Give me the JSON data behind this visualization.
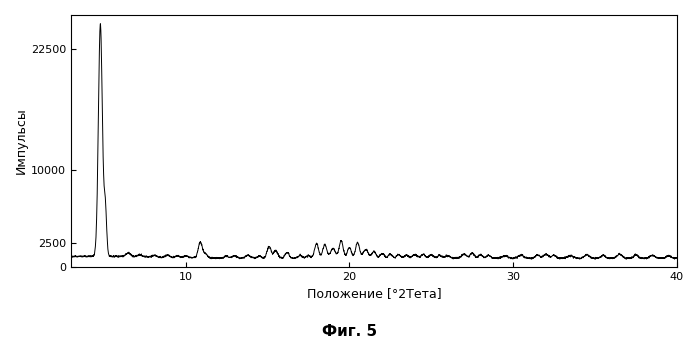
{
  "ylabel": "Импульсы",
  "xlabel": "Положение [°2Тета]",
  "caption": "Фиг. 5",
  "xlim": [
    3,
    40
  ],
  "ylim": [
    0,
    26000
  ],
  "yticks": [
    0,
    2500,
    10000,
    22500
  ],
  "xticks": [
    10,
    20,
    30,
    40
  ],
  "line_color": "#000000",
  "background_color": "#ffffff",
  "linewidth": 0.7
}
